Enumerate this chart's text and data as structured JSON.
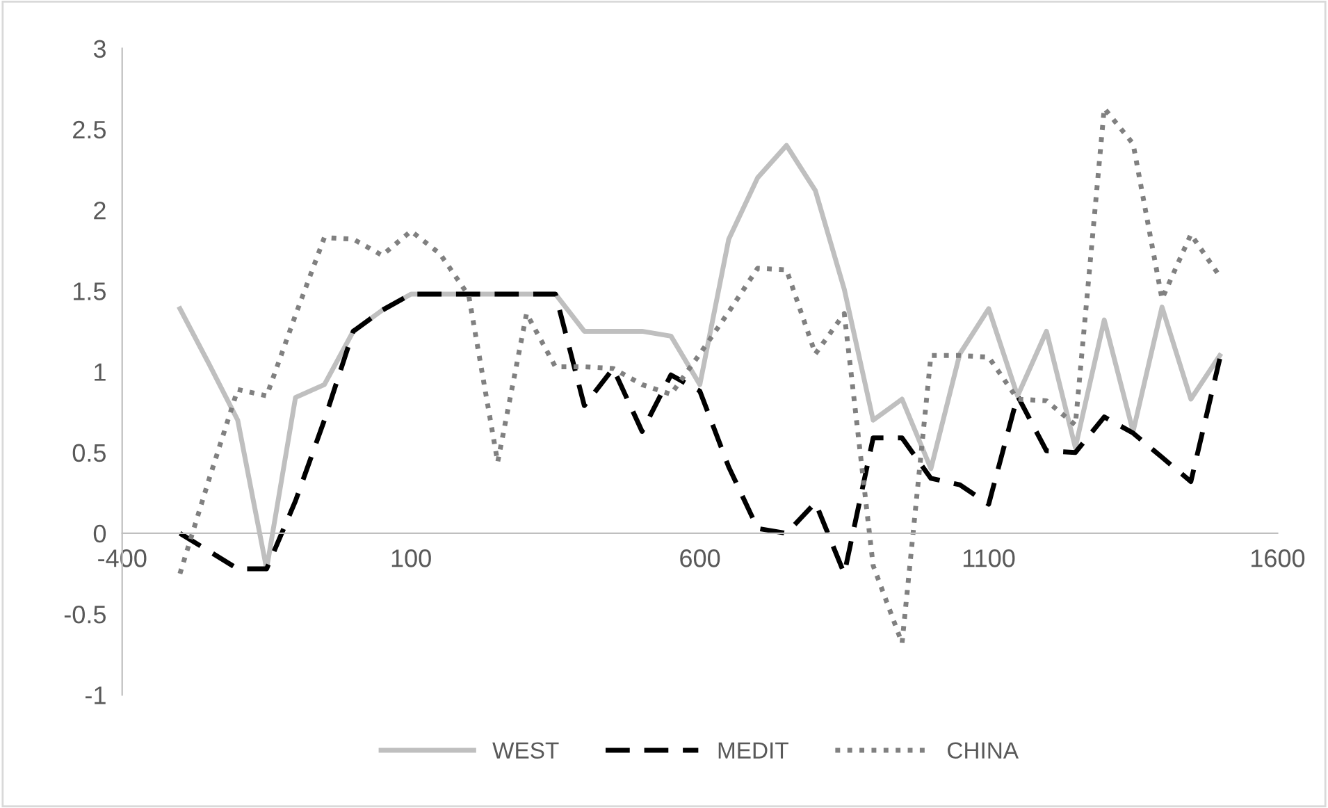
{
  "chart_data": {
    "type": "line",
    "x": [
      -300,
      -250,
      -200,
      -150,
      -100,
      -50,
      0,
      50,
      100,
      150,
      200,
      250,
      300,
      350,
      400,
      450,
      500,
      550,
      600,
      650,
      700,
      750,
      800,
      850,
      900,
      950,
      1000,
      1050,
      1100,
      1150,
      1200,
      1250,
      1300,
      1350,
      1400,
      1450,
      1500
    ],
    "series": [
      {
        "name": "WEST",
        "color": "#bfbfbf",
        "line_style": "solid",
        "values": [
          1.39,
          1.05,
          0.7,
          -0.22,
          0.84,
          0.92,
          1.25,
          1.38,
          1.48,
          1.48,
          1.48,
          1.48,
          1.48,
          1.48,
          1.25,
          1.25,
          1.25,
          1.22,
          0.92,
          1.82,
          2.2,
          2.4,
          2.12,
          1.51,
          0.7,
          0.83,
          0.4,
          1.11,
          1.39,
          0.85,
          1.25,
          0.53,
          1.32,
          0.63,
          1.4,
          0.83,
          1.1
        ]
      },
      {
        "name": "MEDIT",
        "color": "#000000",
        "line_style": "dashed",
        "values": [
          0,
          -0.11,
          -0.22,
          -0.22,
          0.2,
          0.7,
          1.25,
          1.38,
          1.48,
          1.48,
          1.48,
          1.48,
          1.48,
          1.48,
          0.79,
          1.02,
          0.63,
          0.98,
          0.88,
          0.41,
          0.03,
          0,
          0.19,
          -0.25,
          0.59,
          0.59,
          0.34,
          0.3,
          0.18,
          0.85,
          0.51,
          0.5,
          0.72,
          0.62,
          0.47,
          0.32,
          1.08
        ]
      },
      {
        "name": "CHINA",
        "color": "#808080",
        "line_style": "dotted",
        "values": [
          -0.25,
          0.33,
          0.89,
          0.85,
          1.35,
          1.83,
          1.82,
          1.72,
          1.87,
          1.73,
          1.47,
          0.44,
          1.36,
          1.03,
          1.03,
          1.02,
          0.92,
          0.86,
          1.11,
          1.37,
          1.64,
          1.63,
          1.11,
          1.36,
          -0.2,
          -0.68,
          1.1,
          1.1,
          1.09,
          0.83,
          0.82,
          0.67,
          2.63,
          2.41,
          1.45,
          1.85,
          1.59
        ]
      }
    ],
    "xlim": [
      -400,
      1600
    ],
    "xticks": [
      -400,
      100,
      600,
      1100,
      1600
    ],
    "ylim": [
      -1,
      3
    ],
    "yticks": [
      -1,
      -0.5,
      0,
      0.5,
      1,
      1.5,
      2,
      2.5,
      3
    ],
    "grid": false,
    "legend": "bottom",
    "marker": "none"
  }
}
